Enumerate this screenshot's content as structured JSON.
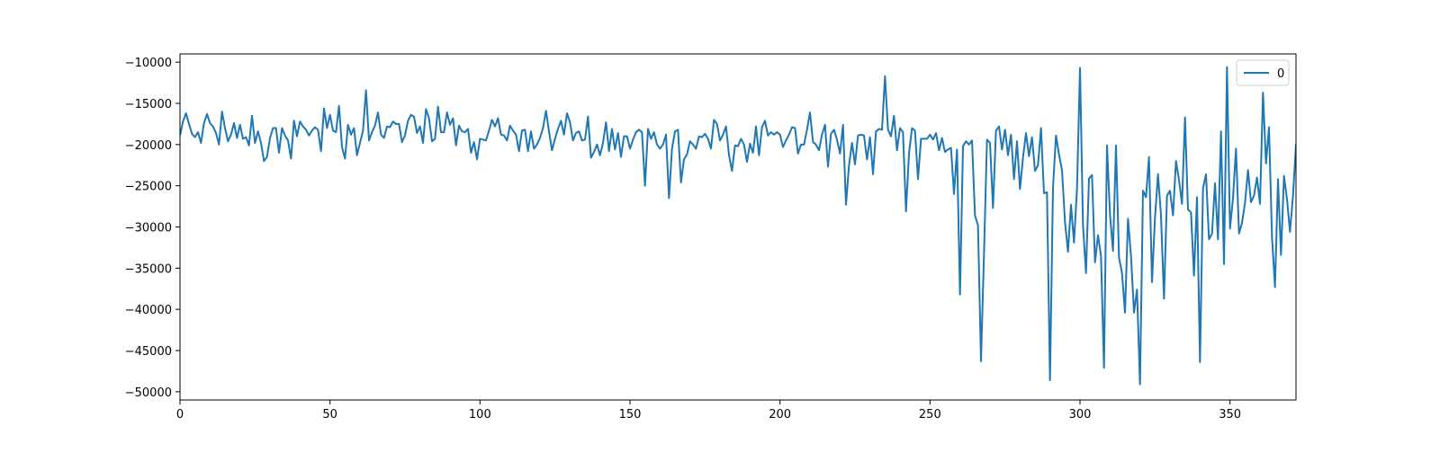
{
  "chart_data": {
    "type": "line",
    "title": "",
    "xlabel": "",
    "ylabel": "",
    "xlim": [
      0,
      372
    ],
    "ylim": [
      -51000,
      -9000
    ],
    "x_ticks": [
      0,
      50,
      100,
      150,
      200,
      250,
      300,
      350
    ],
    "y_ticks": [
      -10000,
      -15000,
      -20000,
      -25000,
      -30000,
      -35000,
      -40000,
      -45000,
      -50000
    ],
    "grid": false,
    "legend": {
      "placement": "top-right",
      "entries": [
        "0"
      ]
    },
    "series": [
      {
        "name": "0",
        "color": "#1f77b4",
        "x_start": 0,
        "x_step": 1,
        "values": [
          -18900,
          -17200,
          -16200,
          -17500,
          -18700,
          -19100,
          -18500,
          -19800,
          -17400,
          -16300,
          -17400,
          -17800,
          -18600,
          -20000,
          -16000,
          -18000,
          -19600,
          -18800,
          -17400,
          -19200,
          -17600,
          -19300,
          -19100,
          -20100,
          -16500,
          -19800,
          -18400,
          -19800,
          -22000,
          -21500,
          -19200,
          -18000,
          -18000,
          -21000,
          -18000,
          -18900,
          -19500,
          -21700,
          -17100,
          -19000,
          -17200,
          -17800,
          -18200,
          -18900,
          -18300,
          -17900,
          -18200,
          -20800,
          -15600,
          -18000,
          -16400,
          -18300,
          -18500,
          -15300,
          -20300,
          -21700,
          -17600,
          -18800,
          -18000,
          -21300,
          -19800,
          -18300,
          -13400,
          -19500,
          -18500,
          -17700,
          -16100,
          -18800,
          -19200,
          -17800,
          -17900,
          -17200,
          -17500,
          -17500,
          -19700,
          -18900,
          -17100,
          -16400,
          -16600,
          -18600,
          -17800,
          -19800,
          -15700,
          -16800,
          -19600,
          -19300,
          -15400,
          -18500,
          -18500,
          -16100,
          -17600,
          -16800,
          -20100,
          -17700,
          -18400,
          -18500,
          -18100,
          -21000,
          -19700,
          -21800,
          -19300,
          -19400,
          -19500,
          -18300,
          -17000,
          -17800,
          -16800,
          -18800,
          -18900,
          -19500,
          -17700,
          -18300,
          -18800,
          -20800,
          -18300,
          -18200,
          -20800,
          -18400,
          -20500,
          -20000,
          -19200,
          -18000,
          -15900,
          -18400,
          -20700,
          -19300,
          -18100,
          -17100,
          -18800,
          -16200,
          -17300,
          -19500,
          -18600,
          -18400,
          -19500,
          -19400,
          -16600,
          -21600,
          -20900,
          -20000,
          -21300,
          -19800,
          -17300,
          -20800,
          -18100,
          -20600,
          -18600,
          -21500,
          -19000,
          -19000,
          -20500,
          -19400,
          -18500,
          -18200,
          -18500,
          -25000,
          -18100,
          -19300,
          -18500,
          -20000,
          -20500,
          -20000,
          -18800,
          -26500,
          -20500,
          -18400,
          -18200,
          -24600,
          -21800,
          -21200,
          -19600,
          -20000,
          -20500,
          -19000,
          -19100,
          -18700,
          -19300,
          -20500,
          -17000,
          -17500,
          -19500,
          -18800,
          -17800,
          -21300,
          -23200,
          -20100,
          -20200,
          -19300,
          -20000,
          -22100,
          -19900,
          -21000,
          -17800,
          -21300,
          -17900,
          -17100,
          -18900,
          -18500,
          -18800,
          -18500,
          -18800,
          -20300,
          -19500,
          -18800,
          -17900,
          -18000,
          -21100,
          -20000,
          -20000,
          -18200,
          -16100,
          -19700,
          -20000,
          -20700,
          -18800,
          -17600,
          -22700,
          -18700,
          -18200,
          -19400,
          -21100,
          -17600,
          -27300,
          -22500,
          -19800,
          -22400,
          -18900,
          -18800,
          -18900,
          -21800,
          -19100,
          -23600,
          -18400,
          -18100,
          -18200,
          -11700,
          -18200,
          -19000,
          -16500,
          -20700,
          -18000,
          -18500,
          -28100,
          -21100,
          -18000,
          -18300,
          -24200,
          -19300,
          -19300,
          -19300,
          -18800,
          -19400,
          -18600,
          -20700,
          -19200,
          -20900,
          -20600,
          -20400,
          -26000,
          -20600,
          -38200,
          -20200,
          -19600,
          -20000,
          -19500,
          -28600,
          -29800,
          -46300,
          -33300,
          -19400,
          -19800,
          -27700,
          -18300,
          -17800,
          -20600,
          -18200,
          -21300,
          -18800,
          -24200,
          -19600,
          -25400,
          -21600,
          -18600,
          -21400,
          -19100,
          -23200,
          -22500,
          -18000,
          -25900,
          -25800,
          -48600,
          -25200,
          -18900,
          -21200,
          -23100,
          -29400,
          -33000,
          -27300,
          -31900,
          -25400,
          -10700,
          -29800,
          -35600,
          -24100,
          -23700,
          -34300,
          -31000,
          -33500,
          -47100,
          -20100,
          -28500,
          -32900,
          -20100,
          -33700,
          -35600,
          -40400,
          -29000,
          -33500,
          -40400,
          -37600,
          -49100,
          -25600,
          -26400,
          -21500,
          -36700,
          -28900,
          -23600,
          -28600,
          -38700,
          -26200,
          -25600,
          -28600,
          -22000,
          -24300,
          -27200,
          -16700,
          -27900,
          -28200,
          -35900,
          -26400,
          -46400,
          -25300,
          -23600,
          -31500,
          -30800,
          -24700,
          -31500,
          -18400,
          -34500,
          -10600,
          -30200,
          -26500,
          -20500,
          -30800,
          -29500,
          -27100,
          -23100,
          -27000,
          -26200,
          -24000,
          -27200,
          -13700,
          -22300,
          -17900,
          -31200,
          -37300,
          -24200,
          -33400,
          -23800,
          -26600,
          -30600,
          -26200,
          -20000,
          -21200
        ]
      }
    ]
  }
}
